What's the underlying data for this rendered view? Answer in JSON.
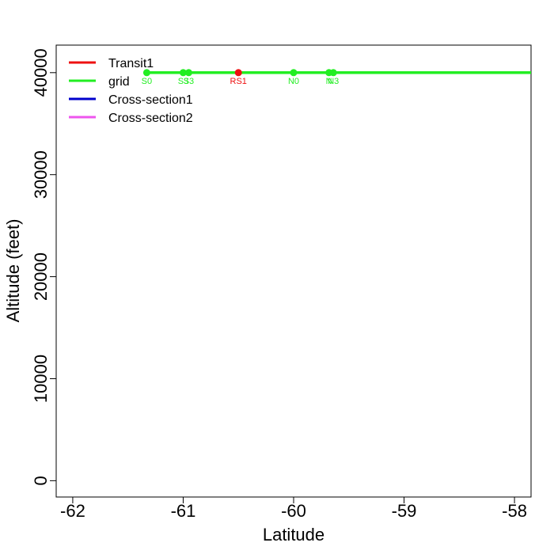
{
  "chart_data": {
    "type": "line",
    "title": "",
    "xlabel": "Latitude",
    "ylabel": "Altitude (feet)",
    "xlim": [
      -62.15,
      -57.85
    ],
    "ylim": [
      -1600,
      42700
    ],
    "x_ticks": [
      -62,
      -61,
      -60,
      -59,
      -58
    ],
    "x_tick_labels": [
      "-62",
      "-61",
      "-60",
      "-59",
      "-58"
    ],
    "y_ticks": [
      0,
      10000,
      20000,
      30000,
      40000
    ],
    "y_tick_labels": [
      "0",
      "10000",
      "20000",
      "30000",
      "40000"
    ],
    "grid": false,
    "legend": {
      "position": "top-left",
      "entries": [
        {
          "name": "Transit1",
          "color": "#ee1111"
        },
        {
          "name": "grid",
          "color": "#22ee22"
        },
        {
          "name": "Cross-section1",
          "color": "#0000cc"
        },
        {
          "name": "Cross-section2",
          "color": "#ee55ee"
        }
      ]
    },
    "series": [
      {
        "name": "grid",
        "color": "#22ee22",
        "line": {
          "x": [
            -61.33,
            -57.85
          ],
          "y": [
            40000,
            40000
          ]
        },
        "points": [
          {
            "label": "S0",
            "x": -61.33,
            "y": 40000
          },
          {
            "label": "S3",
            "x": -61.0,
            "y": 40000
          },
          {
            "label": "S3",
            "x": -60.95,
            "y": 40000
          },
          {
            "label": "N0",
            "x": -60.0,
            "y": 40000
          },
          {
            "label": "N",
            "x": -59.68,
            "y": 40000
          },
          {
            "label": "N3",
            "x": -59.64,
            "y": 40000
          }
        ]
      },
      {
        "name": "Transit1",
        "color": "#ee1111",
        "points": [
          {
            "label": "RS1",
            "x": -60.5,
            "y": 40000
          }
        ]
      }
    ]
  }
}
